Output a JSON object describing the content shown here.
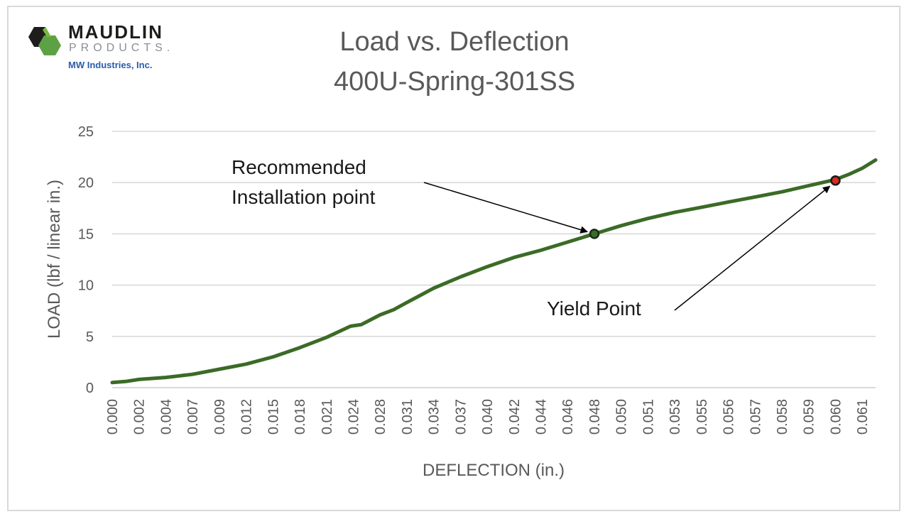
{
  "logo": {
    "name": "MAUDLIN",
    "sub": "PRODUCTS.",
    "tagline": "MW Industries, Inc."
  },
  "colors": {
    "series": "#3b6b26",
    "grid": "#d9d9d9",
    "axis_text": "#595959",
    "installation_marker": "#3b6b26",
    "yield_marker": "#e0281e",
    "brand_blue": "#2a5caa"
  },
  "chart_data": {
    "type": "line",
    "title": "Load vs. Deflection",
    "subtitle": "400U-Spring-301SS",
    "xlabel": "DEFLECTION (in.)",
    "ylabel": "LOAD (lbf / linear in.)",
    "ylim": [
      0,
      25
    ],
    "yticks": [
      "0",
      "5",
      "10",
      "15",
      "20",
      "25"
    ],
    "grid": "horizontal",
    "categories": [
      "0.000",
      "0.002",
      "0.004",
      "0.007",
      "0.009",
      "0.012",
      "0.015",
      "0.018",
      "0.021",
      "0.024",
      "0.028",
      "0.031",
      "0.034",
      "0.037",
      "0.040",
      "0.042",
      "0.044",
      "0.046",
      "0.048",
      "0.050",
      "0.051",
      "0.053",
      "0.055",
      "0.056",
      "0.057",
      "0.058",
      "0.059",
      "0.060",
      "0.061"
    ],
    "series": [
      {
        "points": [
          [
            0.0,
            0.5
          ],
          [
            0.5,
            0.6
          ],
          [
            1.0,
            0.8
          ],
          [
            2.0,
            1.0
          ],
          [
            3.0,
            1.3
          ],
          [
            4.0,
            1.8
          ],
          [
            5.0,
            2.3
          ],
          [
            6.0,
            3.0
          ],
          [
            7.0,
            3.9
          ],
          [
            8.0,
            4.9
          ],
          [
            8.9,
            6.0
          ],
          [
            9.3,
            6.15
          ],
          [
            10.0,
            7.1
          ],
          [
            10.5,
            7.6
          ],
          [
            11.0,
            8.3
          ],
          [
            11.5,
            9.0
          ],
          [
            12.0,
            9.7
          ],
          [
            13.0,
            10.8
          ],
          [
            14.0,
            11.8
          ],
          [
            15.0,
            12.7
          ],
          [
            16.0,
            13.4
          ],
          [
            17.0,
            14.2
          ],
          [
            18.0,
            15.0
          ],
          [
            19.0,
            15.8
          ],
          [
            20.0,
            16.5
          ],
          [
            21.0,
            17.1
          ],
          [
            22.0,
            17.6
          ],
          [
            23.0,
            18.1
          ],
          [
            24.0,
            18.6
          ],
          [
            25.0,
            19.1
          ],
          [
            26.0,
            19.7
          ],
          [
            27.0,
            20.3
          ],
          [
            27.5,
            20.8
          ],
          [
            28.0,
            21.4
          ],
          [
            28.5,
            22.2
          ]
        ]
      }
    ],
    "annotations": [
      {
        "lines": [
          "Recommended",
          "Installation point"
        ],
        "x": 18.0,
        "y": 15.0
      },
      {
        "lines": [
          "Yield Point"
        ],
        "x": 27.0,
        "y": 20.2
      }
    ]
  }
}
